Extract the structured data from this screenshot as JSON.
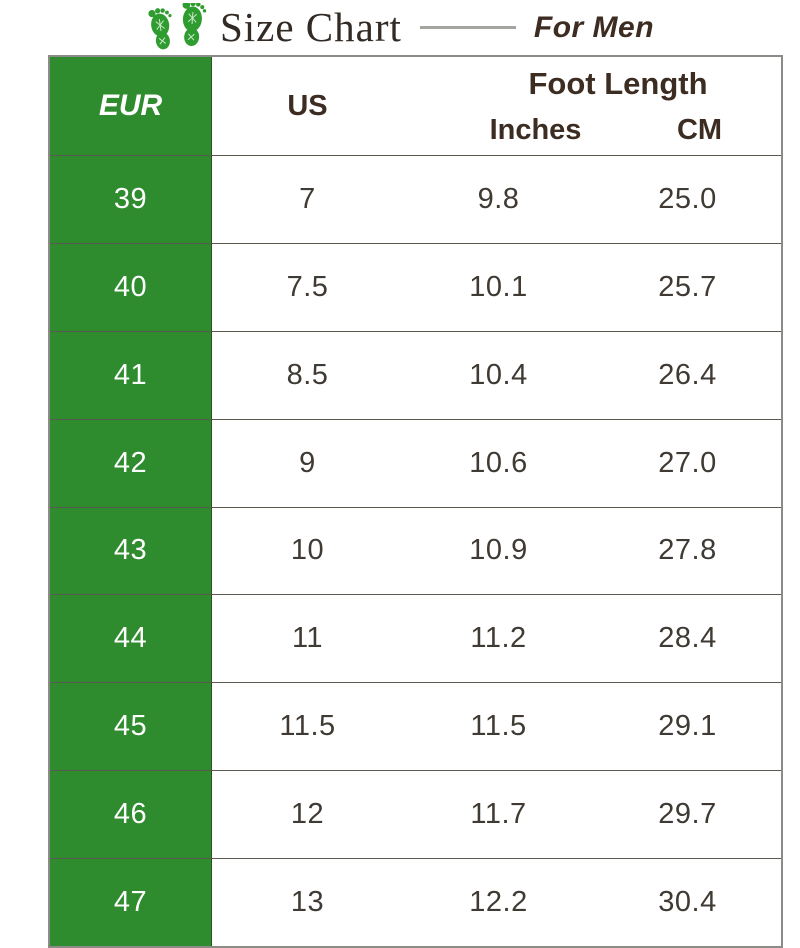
{
  "header": {
    "title": "Size Chart",
    "subtitle": "For Men",
    "feet_icon": "green-footprints-icon"
  },
  "table_header": {
    "eur": "EUR",
    "us": "US",
    "foot_length": "Foot Length",
    "inches": "Inches",
    "cm": "CM"
  },
  "colors": {
    "green": "#2e8b2e",
    "icon_green": "#2f9c2f",
    "header_text": "#3c2c21",
    "data_text": "#403a34",
    "title_text": "#322a24",
    "row_line": "#5a5a52",
    "outer_border": "#8c8c86",
    "eur_text": "#ffffff"
  },
  "chart_data": {
    "type": "table",
    "title": "Size Chart",
    "subtitle": "For Men",
    "column_groups": [
      {
        "label": "Foot Length",
        "children": [
          "Inches",
          "CM"
        ]
      }
    ],
    "columns": [
      "EUR",
      "US",
      "Inches",
      "CM"
    ],
    "rows": [
      [
        "39",
        "7",
        "9.8",
        "25.0"
      ],
      [
        "40",
        "7.5",
        "10.1",
        "25.7"
      ],
      [
        "41",
        "8.5",
        "10.4",
        "26.4"
      ],
      [
        "42",
        "9",
        "10.6",
        "27.0"
      ],
      [
        "43",
        "10",
        "10.9",
        "27.8"
      ],
      [
        "44",
        "11",
        "11.2",
        "28.4"
      ],
      [
        "45",
        "11.5",
        "11.5",
        "29.1"
      ],
      [
        "46",
        "12",
        "11.7",
        "29.7"
      ],
      [
        "47",
        "13",
        "12.2",
        "30.4"
      ]
    ]
  }
}
